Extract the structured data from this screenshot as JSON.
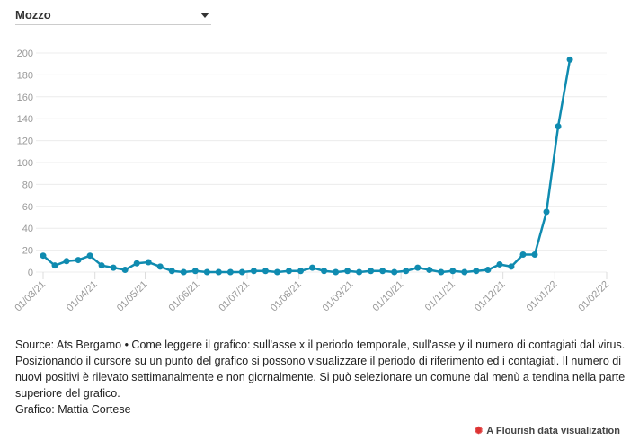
{
  "dropdown": {
    "selected": "Mozzo"
  },
  "chart_data": {
    "type": "line",
    "title": "",
    "xlabel": "",
    "ylabel": "",
    "ylim": [
      0,
      200
    ],
    "yticks": [
      0,
      20,
      40,
      60,
      80,
      100,
      120,
      140,
      160,
      180,
      200
    ],
    "xticks": [
      "01/03/21",
      "01/04/21",
      "01/05/21",
      "01/06/21",
      "01/07/21",
      "01/08/21",
      "01/09/21",
      "01/10/21",
      "01/11/21",
      "01/12/21",
      "01/01/22",
      "01/02/22"
    ],
    "xtick_days": [
      0,
      31,
      61,
      92,
      122,
      153,
      184,
      214,
      245,
      275,
      306,
      337
    ],
    "x_start": "01/03/21",
    "x_interval_days": 7,
    "series": [
      {
        "name": "Mozzo",
        "color": "#0f8bb0",
        "values": [
          15,
          6,
          10,
          11,
          15,
          6,
          4,
          2,
          8,
          9,
          5,
          1,
          0,
          1,
          0,
          0,
          0,
          0,
          1,
          1,
          0,
          1,
          1,
          4,
          1,
          0,
          1,
          0,
          1,
          1,
          0,
          1,
          4,
          2,
          0,
          1,
          0,
          1,
          2,
          7,
          5,
          16,
          16,
          55,
          133,
          194
        ]
      }
    ],
    "grid": true
  },
  "footer": {
    "text": "Source: Ats Bergamo • Come leggere il grafico: sull'asse x il periodo temporale, sull'asse y il numero di contagiati dal virus. Posizionando il cursore su un punto del grafico si possono visualizzare il periodo di riferimento ed i contagiati. Il numero di nuovi positivi è rilevato settimanalmente e non giornalmente. Si può selezionare un comune dal menù a tendina nella parte superiore del grafico.",
    "author": "Grafico: Mattia Cortese"
  },
  "credit": "A Flourish data visualization"
}
